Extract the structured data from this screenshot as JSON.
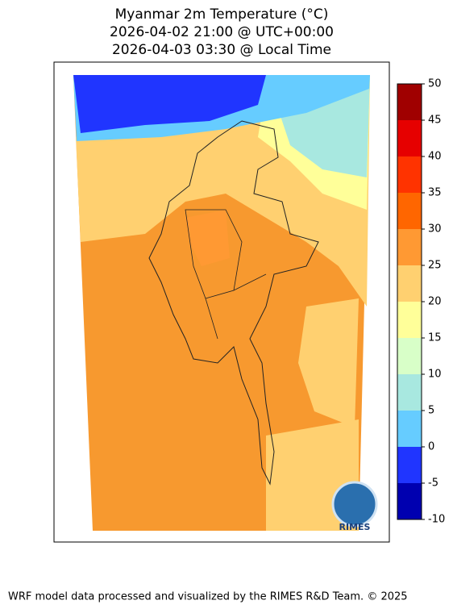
{
  "title": [
    "Myanmar 2m Temperature (°C)",
    "2026-04-02 21:00 @ UTC+00:00",
    "2026-04-03 03:30 @ Local Time"
  ],
  "colorbar": {
    "lim": [
      -10,
      50
    ],
    "ticks": [
      -10,
      -5,
      0,
      5,
      10,
      15,
      20,
      25,
      30,
      35,
      40,
      45,
      50
    ],
    "colors": [
      "#0000b0",
      "#2035ff",
      "#66ccff",
      "#a8e8e0",
      "#d8ffc8",
      "#ffff99",
      "#ffd070",
      "#ff9933",
      "#ff6600",
      "#ff3300",
      "#e60000",
      "#a00000"
    ]
  },
  "logo_text": "RIMES",
  "footer": "WRF model data processed and visualized by the RIMES R&D Team. © 2025"
}
